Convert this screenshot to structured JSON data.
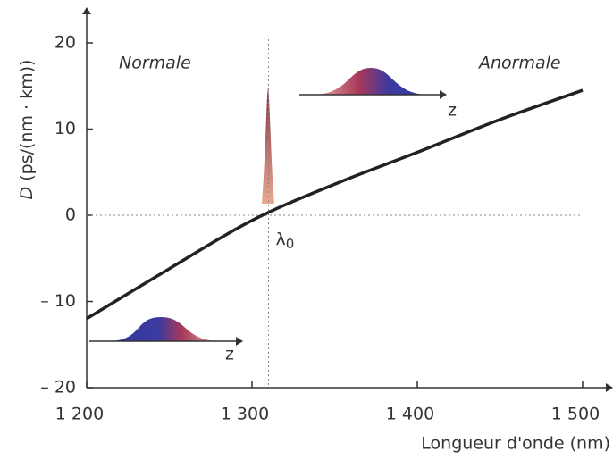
{
  "chart_data": {
    "type": "line",
    "ylabel_symbol": "D",
    "ylabel_unit": "(ps/(nm · km))",
    "xlabel": "Longueur d'onde (nm)",
    "region_left": "Normale",
    "region_right": "Anormale",
    "lambda_symbol": "λ",
    "lambda_sub": "0",
    "lambda0": 1310,
    "pulse_axis_label": "z",
    "x": [
      1200,
      1250,
      1300,
      1350,
      1400,
      1450,
      1500
    ],
    "series": [
      {
        "color": "#222222",
        "values": [
          -12,
          -6.2,
          -0.6,
          3.6,
          7.3,
          11.1,
          14.5
        ]
      }
    ],
    "xlim": [
      1200,
      1500
    ],
    "ylim": [
      -20,
      20
    ],
    "xticks": [
      {
        "value": 1200,
        "label": "1 200"
      },
      {
        "value": 1300,
        "label": "1 300"
      },
      {
        "value": 1400,
        "label": "1 400"
      },
      {
        "value": 1500,
        "label": "1 500"
      }
    ],
    "yticks": [
      {
        "value": -20,
        "label": "– 20"
      },
      {
        "value": -10,
        "label": "– 10"
      },
      0,
      10,
      20
    ]
  }
}
